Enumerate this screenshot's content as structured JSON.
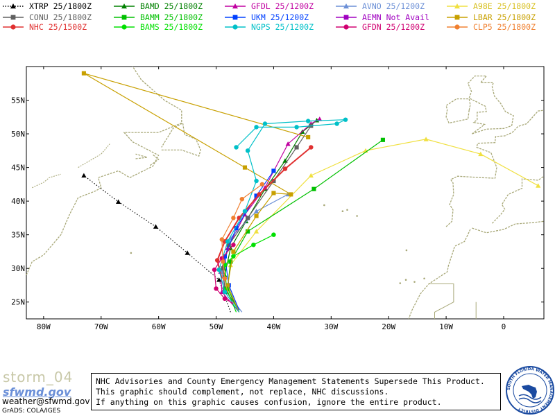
{
  "legend": [
    {
      "label": "XTRP  25/1800Z",
      "color": "#000000",
      "marker": "triangle",
      "dotted": true
    },
    {
      "label": "BAMD  25/1800Z",
      "color": "#008000",
      "marker": "triangle",
      "dotted": false
    },
    {
      "label": "GFDL  25/1200Z",
      "color": "#c000a0",
      "marker": "triangle",
      "dotted": false
    },
    {
      "label": "AVNO  25/1200Z",
      "color": "#6b8fd6",
      "marker": "triangle",
      "dotted": false
    },
    {
      "label": "A98E  25/1800Z",
      "color": "#f0e040",
      "marker": "triangle",
      "dotted": false
    },
    {
      "label": "CONU  25/1800Z",
      "color": "#606060",
      "marker": "square",
      "dotted": false
    },
    {
      "label": "BAMM  25/1800Z",
      "color": "#00c000",
      "marker": "square",
      "dotted": false
    },
    {
      "label": "UKM   25/1200Z",
      "color": "#0040ff",
      "marker": "square",
      "dotted": false
    },
    {
      "label": "AEMN  Not Avail",
      "color": "#a000c0",
      "marker": "square",
      "dotted": false
    },
    {
      "label": "LBAR  25/1800Z",
      "color": "#c8a000",
      "marker": "square",
      "dotted": false
    },
    {
      "label": "NHC   25/1500Z",
      "color": "#e03030",
      "marker": "circle",
      "dotted": false
    },
    {
      "label": "BAMS  25/1800Z",
      "color": "#00e000",
      "marker": "circle",
      "dotted": false
    },
    {
      "label": "NGPS  25/1200Z",
      "color": "#00c0c8",
      "marker": "circle",
      "dotted": false
    },
    {
      "label": "GFDN  25/1200Z",
      "color": "#d00070",
      "marker": "circle",
      "dotted": false
    },
    {
      "label": "CLP5  25/1800Z",
      "color": "#f08030",
      "marker": "circle",
      "dotted": false
    }
  ],
  "map": {
    "lon_range": [
      -83,
      7
    ],
    "lat_range": [
      22.5,
      60
    ],
    "lat_ticks": [
      25,
      30,
      35,
      40,
      45,
      50,
      55
    ],
    "lat_tick_labels": [
      "25N",
      "30N",
      "35N",
      "40N",
      "45N",
      "50N",
      "55N"
    ],
    "lon_ticks": [
      -80,
      -70,
      -60,
      -50,
      -40,
      -30,
      -20,
      -10,
      0
    ],
    "lon_tick_labels": [
      "80W",
      "70W",
      "60W",
      "50W",
      "40W",
      "30W",
      "20W",
      "10W",
      "0"
    ],
    "land_color": "#a8a878",
    "tracks": [
      {
        "model": "XTRP",
        "color": "#000000",
        "marker": "triangle",
        "dotted": true,
        "points": [
          [
            -47.5,
            23.5
          ],
          [
            -49.5,
            28.3
          ],
          [
            -55,
            32.3
          ],
          [
            -60.5,
            36.2
          ],
          [
            -67,
            39.9
          ],
          [
            -73,
            43.8
          ]
        ]
      },
      {
        "model": "BAMD",
        "color": "#008000",
        "marker": "triangle",
        "dotted": false,
        "points": [
          [
            -46,
            23.8
          ],
          [
            -48.2,
            26.5
          ],
          [
            -48.5,
            29
          ],
          [
            -47.5,
            33
          ],
          [
            -44.8,
            37
          ],
          [
            -41.5,
            41.8
          ],
          [
            -38,
            46
          ],
          [
            -35,
            50.3
          ],
          [
            -32.5,
            52
          ]
        ]
      },
      {
        "model": "GFDL",
        "color": "#c000a0",
        "marker": "triangle",
        "dotted": false,
        "points": [
          [
            -46,
            23.5
          ],
          [
            -49,
            26.5
          ],
          [
            -49.2,
            29.5
          ],
          [
            -48,
            33
          ],
          [
            -45,
            38
          ],
          [
            -41.5,
            42
          ],
          [
            -37.5,
            48.5
          ],
          [
            -33.5,
            51.5
          ],
          [
            -32,
            52.2
          ]
        ]
      },
      {
        "model": "AVNO",
        "color": "#6b8fd6",
        "marker": "triangle",
        "dotted": false,
        "points": [
          [
            -45.5,
            23.5
          ],
          [
            -48.5,
            26.8
          ],
          [
            -49,
            29.5
          ],
          [
            -47.5,
            34.5
          ],
          [
            -43,
            38.5
          ],
          [
            -37.5,
            41
          ]
        ]
      },
      {
        "model": "A98E",
        "color": "#f0e040",
        "marker": "triangle",
        "dotted": false,
        "points": [
          [
            -46,
            23.5
          ],
          [
            -48,
            27
          ],
          [
            -47.5,
            30.5
          ],
          [
            -43,
            35.5
          ],
          [
            -33.5,
            43.8
          ],
          [
            -24,
            47.5
          ],
          [
            -13.5,
            49.2
          ],
          [
            -4,
            47
          ],
          [
            6,
            42.3
          ]
        ]
      },
      {
        "model": "CONU",
        "color": "#606060",
        "marker": "square",
        "dotted": false,
        "points": [
          [
            -46,
            23.8
          ],
          [
            -48.5,
            27
          ],
          [
            -48.8,
            30
          ],
          [
            -47.8,
            33.5
          ],
          [
            -44.5,
            37.5
          ],
          [
            -40,
            43
          ],
          [
            -36,
            48
          ],
          [
            -33.5,
            51.2
          ]
        ]
      },
      {
        "model": "BAMM",
        "color": "#00c000",
        "marker": "square",
        "dotted": false,
        "points": [
          [
            -46,
            23.5
          ],
          [
            -48,
            27
          ],
          [
            -47.5,
            31
          ],
          [
            -44.5,
            35.5
          ],
          [
            -33,
            41.8
          ],
          [
            -21,
            49.1
          ]
        ]
      },
      {
        "model": "UKM",
        "color": "#0040ff",
        "marker": "square",
        "dotted": false,
        "points": [
          [
            -46,
            23.8
          ],
          [
            -47.8,
            27.5
          ],
          [
            -48.5,
            31.8
          ],
          [
            -46.5,
            36
          ],
          [
            -43,
            40.8
          ],
          [
            -40,
            44.5
          ]
        ]
      },
      {
        "model": "LBAR",
        "color": "#c8a000",
        "marker": "square",
        "dotted": false,
        "points": [
          [
            -46,
            23.5
          ],
          [
            -48,
            27.5
          ],
          [
            -47,
            32.5
          ],
          [
            -43,
            37.8
          ],
          [
            -40,
            41.2
          ],
          [
            -37,
            41
          ],
          [
            -45,
            45
          ],
          [
            -73,
            59
          ],
          [
            -34,
            49.5
          ]
        ]
      },
      {
        "model": "NHC",
        "color": "#e03030",
        "marker": "circle",
        "dotted": false,
        "points": [
          [
            -49,
            28.5
          ],
          [
            -49.8,
            31.2
          ],
          [
            -48.5,
            34
          ],
          [
            -46,
            37.5
          ],
          [
            -42.5,
            41
          ],
          [
            -38,
            44.8
          ],
          [
            -33.5,
            48
          ]
        ]
      },
      {
        "model": "BAMS",
        "color": "#00e000",
        "marker": "circle",
        "dotted": false,
        "points": [
          [
            -46.5,
            23.5
          ],
          [
            -48.2,
            27
          ],
          [
            -48.5,
            30.5
          ],
          [
            -47,
            31.8
          ],
          [
            -43.5,
            33.5
          ],
          [
            -40,
            35
          ]
        ]
      },
      {
        "model": "NGPS",
        "color": "#00c0c8",
        "marker": "circle",
        "dotted": false,
        "points": [
          [
            -46,
            23.5
          ],
          [
            -48.5,
            26.5
          ],
          [
            -49.5,
            29.8
          ],
          [
            -48,
            34
          ],
          [
            -45,
            38.5
          ],
          [
            -43,
            43
          ],
          [
            -44.5,
            47.5
          ],
          [
            -41.5,
            51.5
          ],
          [
            -34,
            51.9
          ],
          [
            -27.5,
            52.1
          ],
          [
            -29,
            51.5
          ],
          [
            -36,
            51
          ],
          [
            -43,
            51
          ],
          [
            -46.5,
            48
          ]
        ]
      },
      {
        "model": "GFDN",
        "color": "#d00070",
        "marker": "circle",
        "dotted": false,
        "points": [
          [
            -47,
            24.8
          ],
          [
            -48.5,
            25.5
          ],
          [
            -50,
            27
          ],
          [
            -50.3,
            29.8
          ],
          [
            -49,
            31.5
          ],
          [
            -47,
            33.5
          ]
        ]
      },
      {
        "model": "CLP5",
        "color": "#f08030",
        "marker": "circle",
        "dotted": false,
        "points": [
          [
            -48,
            26.5
          ],
          [
            -48.5,
            28.5
          ],
          [
            -48.8,
            31
          ],
          [
            -49,
            34.3
          ],
          [
            -47,
            37.5
          ],
          [
            -45.5,
            40.3
          ],
          [
            -42,
            42.5
          ]
        ]
      }
    ]
  },
  "footer": {
    "storm_label": "storm_04",
    "logo_text": "sfwmd.gov",
    "email": "weather@sfwmd.gov",
    "grads": "GrADS: COLA/IGES"
  },
  "disclaimer": [
    "NHC Advisories and County Emergency Management Statements Supersede This Product.",
    "This graphic should complement, not replace, NHC discussions.",
    "If anything on this graphic causes confusion, ignore the entire product."
  ],
  "seal": {
    "ring_text": "SOUTH FLORIDA WATER MANAGEMENT DISTRICT",
    "ring_color": "#1a4aa0"
  }
}
